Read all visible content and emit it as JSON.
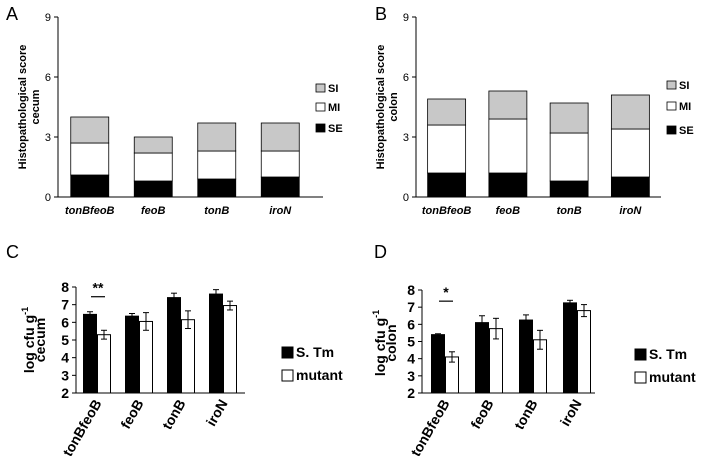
{
  "chart_data": [
    {
      "panel": "A",
      "type": "bar",
      "stacked": true,
      "categories": [
        "tonBfeoB",
        "feoB",
        "tonB",
        "iroN"
      ],
      "series": [
        {
          "name": "SE",
          "color": "#000000",
          "values": [
            1.1,
            0.8,
            0.9,
            1.0
          ]
        },
        {
          "name": "MI",
          "color": "#ffffff",
          "values": [
            1.6,
            1.4,
            1.4,
            1.3
          ]
        },
        {
          "name": "SI",
          "color": "#c8c8c8",
          "values": [
            1.3,
            0.8,
            1.4,
            1.4
          ]
        }
      ],
      "ylabel_lines": [
        "Histopathological score",
        "cecum"
      ],
      "ylim": [
        0,
        9
      ],
      "yticks": [
        "0",
        "3",
        "6",
        "9"
      ],
      "legend_order": [
        "SI",
        "MI",
        "SE"
      ]
    },
    {
      "panel": "B",
      "type": "bar",
      "stacked": true,
      "categories": [
        "tonBfeoB",
        "feoB",
        "tonB",
        "iroN"
      ],
      "series": [
        {
          "name": "SE",
          "color": "#000000",
          "values": [
            1.2,
            1.2,
            0.8,
            1.0
          ]
        },
        {
          "name": "MI",
          "color": "#ffffff",
          "values": [
            2.4,
            2.7,
            2.4,
            2.4
          ]
        },
        {
          "name": "SI",
          "color": "#c8c8c8",
          "values": [
            1.3,
            1.4,
            1.5,
            1.7
          ]
        }
      ],
      "ylabel_lines": [
        "Histopathological score",
        "colon"
      ],
      "ylim": [
        0,
        9
      ],
      "yticks": [
        "0",
        "3",
        "6",
        "9"
      ],
      "legend_order": [
        "SI",
        "MI",
        "SE"
      ]
    },
    {
      "panel": "C",
      "type": "bar",
      "stacked": false,
      "categories": [
        "tonBfeoB",
        "feoB",
        "tonB",
        "iroN"
      ],
      "series": [
        {
          "name": "S. Tm",
          "color": "#000000",
          "values": [
            6.45,
            6.35,
            7.4,
            7.6
          ],
          "errors": [
            0.15,
            0.15,
            0.25,
            0.25
          ]
        },
        {
          "name": "mutant",
          "color": "#ffffff",
          "values": [
            5.3,
            6.05,
            6.15,
            6.95
          ],
          "errors": [
            0.25,
            0.5,
            0.5,
            0.25
          ]
        }
      ],
      "ylabel_lines": [
        "log cfu g",
        "cecum"
      ],
      "ylabel_superscript": "-1",
      "ylim": [
        2,
        8
      ],
      "yticks": [
        "2",
        "3",
        "4",
        "5",
        "6",
        "7",
        "8"
      ],
      "significance": {
        "category": "tonBfeoB",
        "label": "**"
      }
    },
    {
      "panel": "D",
      "type": "bar",
      "stacked": false,
      "categories": [
        "tonBfeoB",
        "feoB",
        "tonB",
        "iroN"
      ],
      "series": [
        {
          "name": "S. Tm",
          "color": "#000000",
          "values": [
            5.4,
            6.1,
            6.25,
            7.25
          ],
          "errors": [
            0.05,
            0.4,
            0.3,
            0.15
          ]
        },
        {
          "name": "mutant",
          "color": "#ffffff",
          "values": [
            4.1,
            5.75,
            5.1,
            6.8
          ],
          "errors": [
            0.3,
            0.6,
            0.55,
            0.35
          ]
        }
      ],
      "ylabel_lines": [
        "log cfu g",
        "colon"
      ],
      "ylabel_superscript": "-1",
      "ylim": [
        2,
        8
      ],
      "yticks": [
        "2",
        "3",
        "4",
        "5",
        "6",
        "7",
        "8"
      ],
      "significance": {
        "category": "tonBfeoB",
        "label": "*"
      }
    }
  ]
}
